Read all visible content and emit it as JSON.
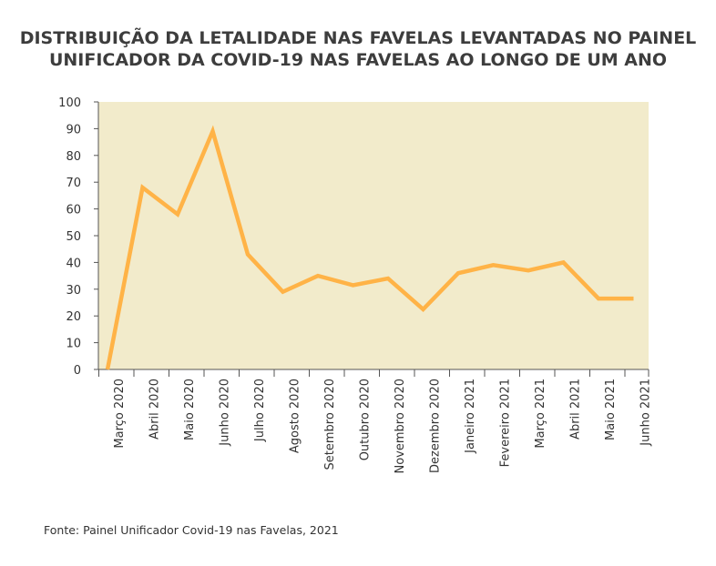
{
  "header": {
    "title_line1": "DISTRIBUIÇÃO DA LETALIDADE NAS FAVELAS LEVANTADAS NO PAINEL",
    "title_line2": "UNIFICADOR DA COVID-19 NAS FAVELAS AO LONGO DE UM ANO"
  },
  "footer": {
    "source": "Fonte: Painel Unificador Covid-19 nas Favelas, 2021"
  },
  "chart_data": {
    "type": "line",
    "title": "DISTRIBUIÇÃO DA LETALIDADE NAS FAVELAS LEVANTADAS NO PAINEL UNIFICADOR DA COVID-19 NAS FAVELAS AO LONGO DE UM ANO",
    "categories": [
      "Março 2020",
      "Abril 2020",
      "Maio 2020",
      "Junho 2020",
      "Julho 2020",
      "Agosto 2020",
      "Setembro 2020",
      "Outubro 2020",
      "Novembro 2020",
      "Dezembro 2020",
      "Janeiro 2021",
      "Fevereiro 2021",
      "Março 2021",
      "Abril 2021",
      "Maio 2021",
      "Junho 2021"
    ],
    "values": [
      0,
      68,
      58,
      89,
      43,
      29,
      35,
      31.5,
      34,
      22.5,
      36,
      39,
      37,
      40,
      26.5,
      26.5
    ],
    "ylim": [
      0,
      100
    ],
    "yticks": [
      0,
      10,
      20,
      30,
      40,
      50,
      60,
      70,
      80,
      90,
      100
    ],
    "grid": false,
    "colors": {
      "line": "#ffb347",
      "plot_background": "#f2ebcb",
      "axis": "#555555"
    }
  }
}
